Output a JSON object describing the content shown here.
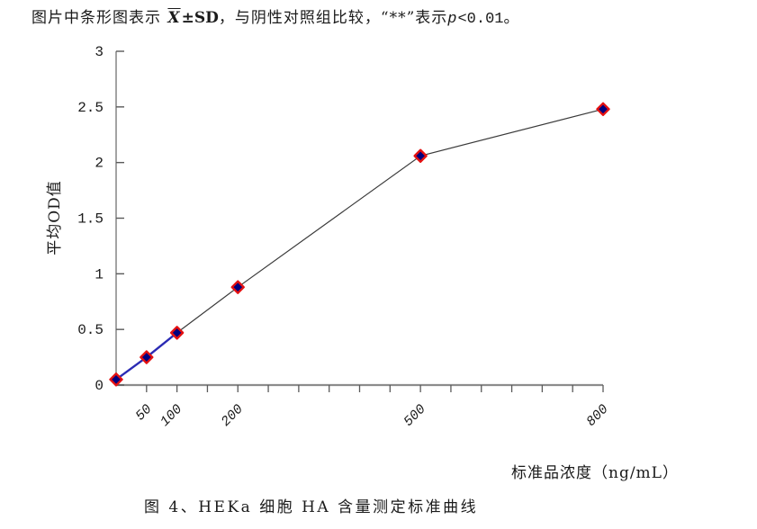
{
  "top_note": {
    "part1": "图片中条形图表示 ",
    "xbar": "X",
    "pm_sd": "±SD",
    "part2": "，与阴性对照组比较，“**”表示",
    "p_italic": "p",
    "part3": "<0.01。"
  },
  "chart_data": {
    "type": "line",
    "title": "",
    "x": [
      0,
      50,
      100,
      200,
      500,
      800
    ],
    "y": [
      0.05,
      0.25,
      0.47,
      0.88,
      2.06,
      2.48
    ],
    "xlabel": "标准品浓度（ng/mL）",
    "ylabel": "平均OD值",
    "xlim": [
      0,
      800
    ],
    "ylim": [
      0,
      3
    ],
    "x_major_tick_step": 50,
    "x_labeled_ticks": [
      50,
      100,
      200,
      500,
      800
    ],
    "y_ticks": [
      0,
      0.5,
      1,
      1.5,
      2,
      2.5,
      3
    ],
    "y_tick_labels": [
      "0",
      "0.5",
      "1",
      "1.5",
      "2",
      "2.5",
      "3"
    ],
    "grid": false,
    "legend": "none",
    "marker": {
      "shape": "diamond",
      "fill": "#00007E",
      "stroke": "#E41111",
      "size": 13
    },
    "line_segments": [
      {
        "from_index": 0,
        "to_index": 2,
        "color": "#2B2BB4",
        "width": 2.4
      },
      {
        "from_index": 2,
        "to_index": 5,
        "color": "#3A3A3A",
        "width": 1.2
      }
    ],
    "axis_color": "#8C8C8C",
    "tick_color": "#5A5A5A"
  },
  "caption": {
    "text": "图 4、HEKa 细胞 HA 含量测定标准曲线"
  }
}
